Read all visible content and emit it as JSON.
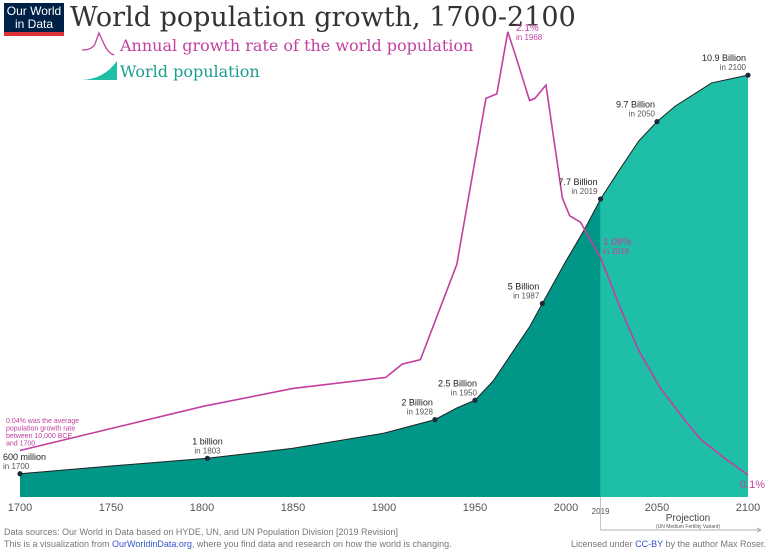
{
  "logo": {
    "line1": "Our World",
    "line2": "in Data"
  },
  "title": "World population growth, 1700-2100",
  "legend": {
    "growth": "Annual growth rate of the world population",
    "population": "World population"
  },
  "colors": {
    "growth": "#c2409f",
    "population_hist": "#009688",
    "population_proj": "#1fbea6",
    "logo_bg": "#002147",
    "logo_bar": "#dc3237"
  },
  "chart_data": {
    "type": "area",
    "title": "World population growth, 1700-2100",
    "xlim": [
      1700,
      2100
    ],
    "x_ticks": [
      "1700",
      "1750",
      "1800",
      "1850",
      "1900",
      "1950",
      "2000",
      "2050",
      "2100"
    ],
    "projection_start": "2019",
    "projection_label": "Projection",
    "projection_sub": "(UN Medium Fertility Variant)",
    "series": [
      {
        "name": "World population",
        "unit": "billion",
        "ylim": [
          0,
          11
        ],
        "points": [
          [
            1700,
            0.6
          ],
          [
            1750,
            0.8
          ],
          [
            1803,
            1.0
          ],
          [
            1850,
            1.26
          ],
          [
            1900,
            1.65
          ],
          [
            1920,
            1.9
          ],
          [
            1928,
            2.0
          ],
          [
            1940,
            2.3
          ],
          [
            1950,
            2.5
          ],
          [
            1960,
            3.0
          ],
          [
            1970,
            3.7
          ],
          [
            1980,
            4.4
          ],
          [
            1987,
            5.0
          ],
          [
            2000,
            6.1
          ],
          [
            2010,
            6.9
          ],
          [
            2019,
            7.7
          ],
          [
            2030,
            8.5
          ],
          [
            2040,
            9.2
          ],
          [
            2050,
            9.7
          ],
          [
            2060,
            10.1
          ],
          [
            2070,
            10.4
          ],
          [
            2080,
            10.7
          ],
          [
            2090,
            10.8
          ],
          [
            2100,
            10.9
          ]
        ]
      },
      {
        "name": "Annual growth rate of the world population",
        "unit": "%",
        "ylim": [
          0,
          2.2
        ],
        "points": [
          [
            1700,
            0.21
          ],
          [
            1801,
            0.41
          ],
          [
            1850,
            0.49
          ],
          [
            1901,
            0.54
          ],
          [
            1910,
            0.6
          ],
          [
            1920,
            0.62
          ],
          [
            1940,
            1.05
          ],
          [
            1956,
            1.8
          ],
          [
            1962,
            1.82
          ],
          [
            1968,
            2.1
          ],
          [
            1972,
            2.0
          ],
          [
            1980,
            1.79
          ],
          [
            1983,
            1.8
          ],
          [
            1989,
            1.86
          ],
          [
            1998,
            1.35
          ],
          [
            2002,
            1.27
          ],
          [
            2008,
            1.24
          ],
          [
            2019,
            1.08
          ],
          [
            2030,
            0.85
          ],
          [
            2040,
            0.66
          ],
          [
            2052,
            0.49
          ],
          [
            2064,
            0.36
          ],
          [
            2074,
            0.26
          ],
          [
            2088,
            0.17
          ],
          [
            2100,
            0.1
          ]
        ]
      }
    ],
    "annotations": {
      "pop": [
        {
          "year": 1700,
          "value": 0.6,
          "label": "600 million",
          "sub": "in 1700"
        },
        {
          "year": 1803,
          "value": 1.0,
          "label": "1 billion",
          "sub": "in 1803"
        },
        {
          "year": 1928,
          "value": 2.0,
          "label": "2 Billion",
          "sub": "in 1928"
        },
        {
          "year": 1950,
          "value": 2.5,
          "label": "2.5 Billion",
          "sub": "in 1950"
        },
        {
          "year": 1987,
          "value": 5.0,
          "label": "5 Billion",
          "sub": "in 1987"
        },
        {
          "year": 2019,
          "value": 7.7,
          "label": "7.7 Billion",
          "sub": "in 2019"
        },
        {
          "year": 2050,
          "value": 9.7,
          "label": "9.7 Billion",
          "sub": "in 2050"
        },
        {
          "year": 2100,
          "value": 10.9,
          "label": "10.9 Billion",
          "sub": "in 2100"
        }
      ],
      "growth_peak": {
        "label": "2.1%",
        "sub": "in 1968"
      },
      "growth_2019": {
        "label": "1.08%",
        "sub": "in 2019"
      },
      "growth_2100": {
        "label": "0.1%"
      },
      "growth_note": [
        "0.04% was the average",
        "population growth rate",
        "between 10,000 BCE",
        "and 1700"
      ]
    }
  },
  "footer": {
    "sources": "Data sources: Our World in Data based on HYDE, UN, and UN Population Division [2019 Revision]",
    "vis_pre": "This is a visualization from ",
    "vis_link": "OurWorldinData.org",
    "vis_post": ", where you find data and research on how the world is changing.",
    "lic_pre": "Licensed under ",
    "lic_link": "CC-BY",
    "lic_post": " by the author Max Roser."
  }
}
